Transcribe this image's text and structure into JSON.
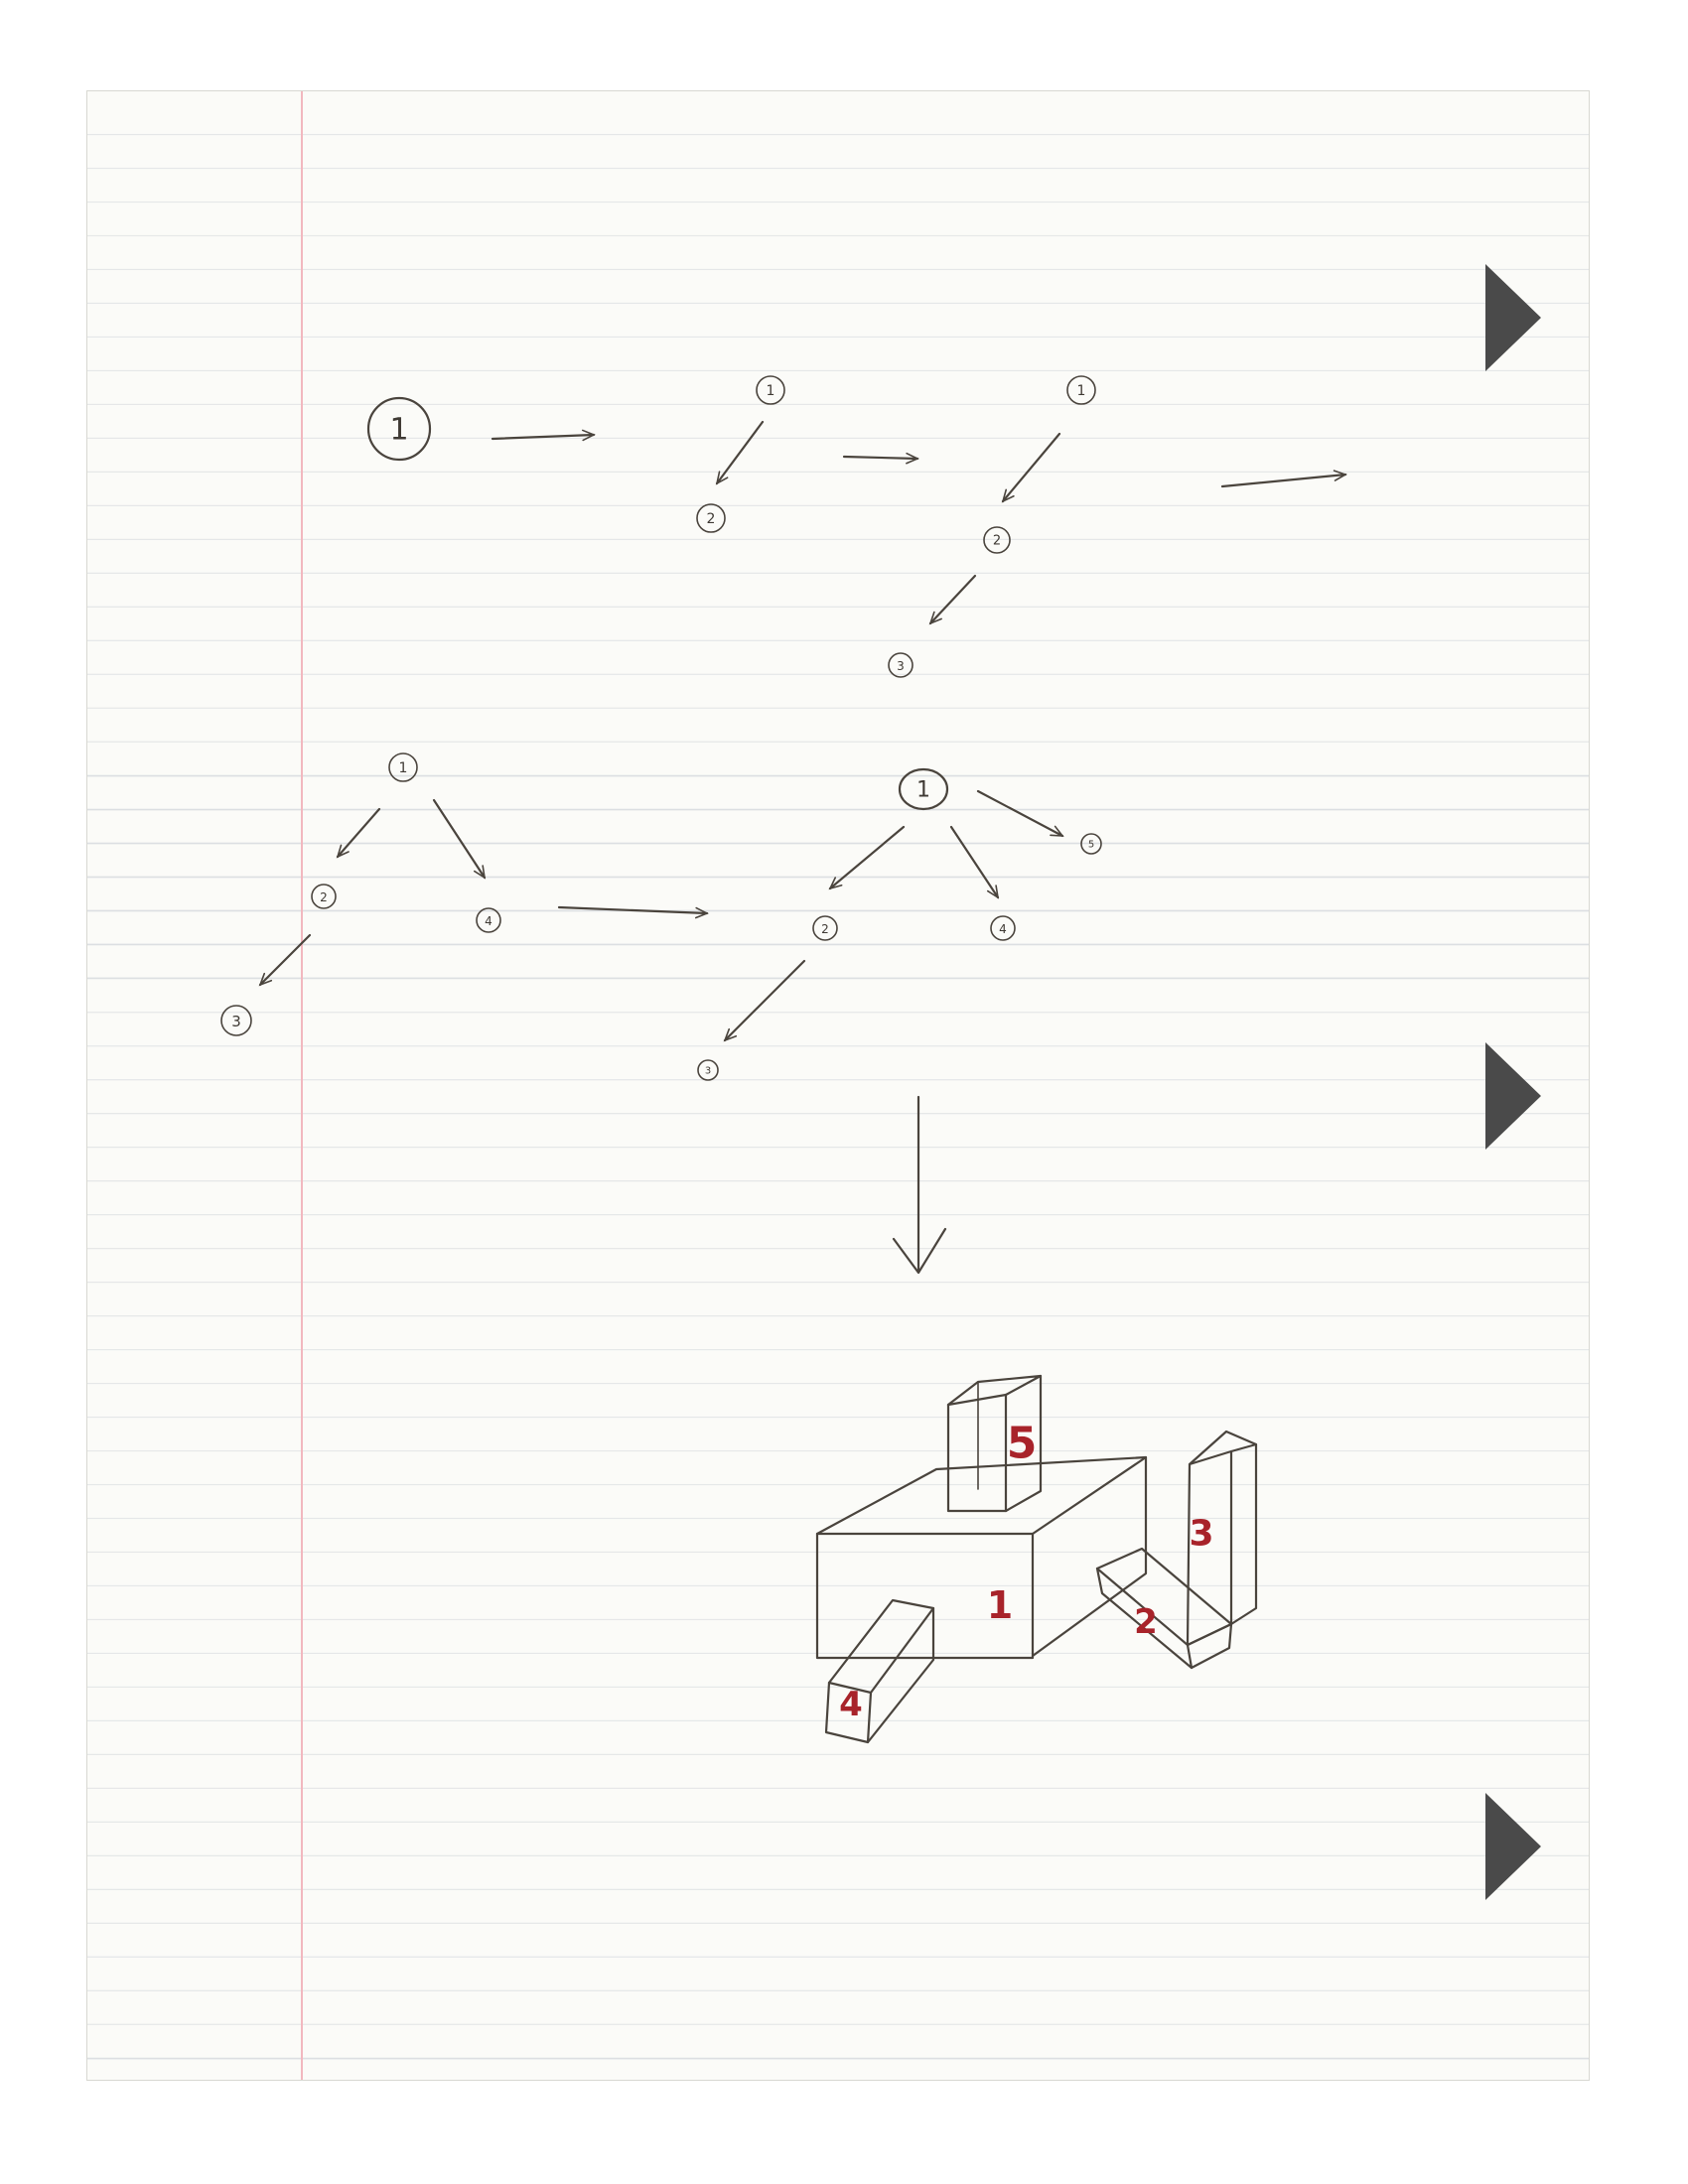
{
  "stage1": {
    "node_1": "1"
  },
  "stage2": {
    "node_1": "1",
    "node_2": "2"
  },
  "stage3": {
    "node_1": "1",
    "node_2": "2",
    "node_3": "3"
  },
  "stage4": {
    "node_1": "1",
    "node_2": "2",
    "node_3": "3",
    "node_4": "4"
  },
  "stage5": {
    "node_1": "1",
    "node_2": "2",
    "node_3": "3",
    "node_4": "4",
    "node_5": "5"
  },
  "blocks": {
    "block_1": "1",
    "block_2": "2",
    "block_3": "3",
    "block_4": "4",
    "block_5": "5"
  },
  "colors": {
    "ink": "#4a443d",
    "red_label": "#a8232a",
    "margin_line": "#f2b8bf",
    "rule_line": "#dcdfe2",
    "hole": "#4a4a4a"
  }
}
